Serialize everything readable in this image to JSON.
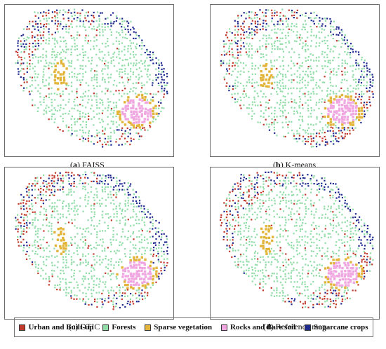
{
  "panels": [
    {
      "id": "a",
      "prefix": "(",
      "letter": "a",
      "suffix": ") FAISS",
      "variant": 0
    },
    {
      "id": "b",
      "prefix": "(",
      "letter": "b",
      "suffix": ") K-means",
      "variant": 1
    },
    {
      "id": "c",
      "prefix": "",
      "letter": "",
      "suffix": "(c) DTIC",
      "variant": 2
    },
    {
      "id": "d",
      "prefix": "(",
      "letter": "d",
      "suffix": ") Reference map",
      "variant": 3
    }
  ],
  "legend": [
    {
      "label": "Urban and Built-up",
      "color": "#c0392b"
    },
    {
      "label": "Forests",
      "color": "#8fdca6"
    },
    {
      "label": "Sparse vegetation",
      "color": "#e2b43a"
    },
    {
      "label": "Rocks and Bare soil",
      "color": "#f0a6e0"
    },
    {
      "label": "Sugarcane crops",
      "color": "#1f2a8f"
    }
  ]
}
